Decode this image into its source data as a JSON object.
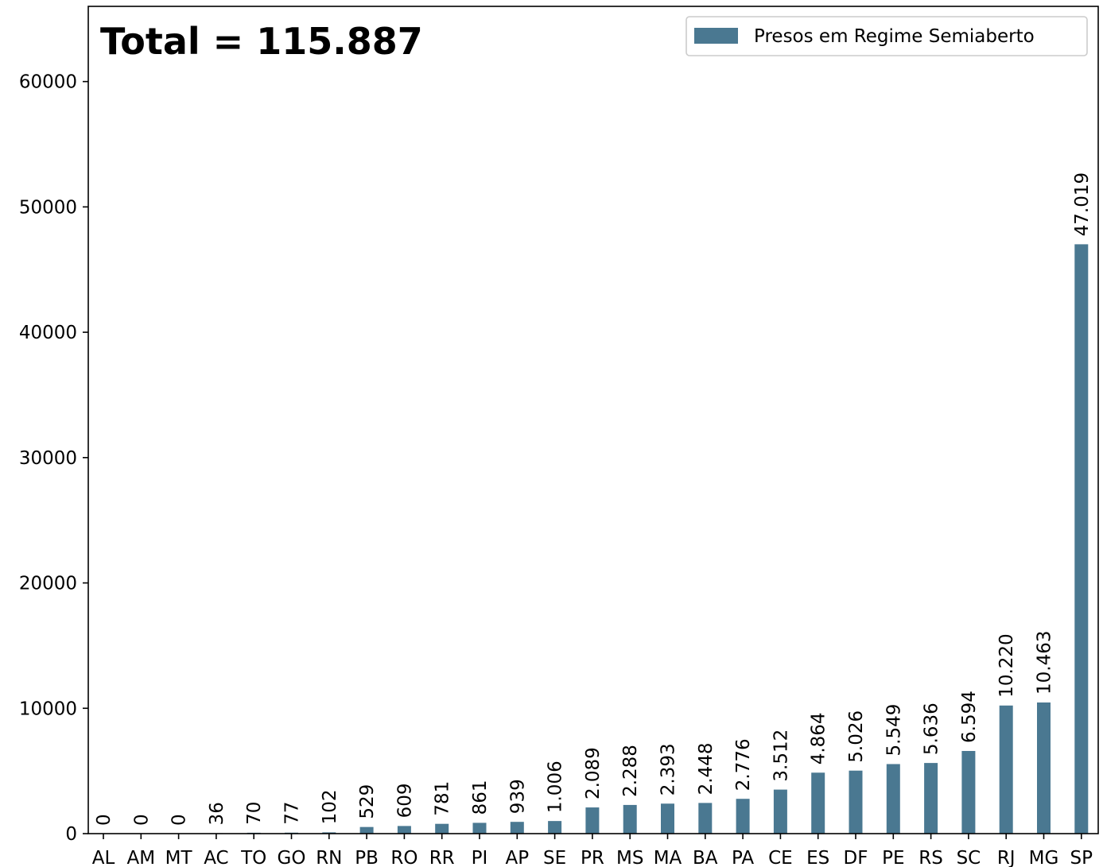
{
  "chart_data": {
    "type": "bar",
    "title": "",
    "annotation": "Total = 115.887",
    "xlabel": "",
    "ylabel": "",
    "ylim": [
      0,
      66000
    ],
    "yticks": [
      0,
      10000,
      20000,
      30000,
      40000,
      50000,
      60000
    ],
    "ytick_labels": [
      "0",
      "10000",
      "20000",
      "30000",
      "40000",
      "50000",
      "60000"
    ],
    "grid": false,
    "legend_position": "top-right",
    "bar_color": "#4a7891",
    "categories": [
      "AL",
      "AM",
      "MT",
      "AC",
      "TO",
      "GO",
      "RN",
      "PB",
      "RO",
      "RR",
      "PI",
      "AP",
      "SE",
      "PR",
      "MS",
      "MA",
      "BA",
      "PA",
      "CE",
      "ES",
      "DF",
      "PE",
      "RS",
      "SC",
      "RJ",
      "MG",
      "SP"
    ],
    "series": [
      {
        "name": "Presos em Regime Semiaberto",
        "values": [
          0,
          0,
          0,
          36,
          70,
          77,
          102,
          529,
          609,
          781,
          861,
          939,
          1006,
          2089,
          2288,
          2393,
          2448,
          2776,
          3512,
          4864,
          5026,
          5549,
          5636,
          6594,
          10220,
          10463,
          47019
        ],
        "labels": [
          "0",
          "0",
          "0",
          "36",
          "70",
          "77",
          "102",
          "529",
          "609",
          "781",
          "861",
          "939",
          "1.006",
          "2.089",
          "2.288",
          "2.393",
          "2.448",
          "2.776",
          "3.512",
          "4.864",
          "5.026",
          "5.549",
          "5.636",
          "6.594",
          "10.220",
          "10.463",
          "47.019"
        ]
      }
    ]
  }
}
